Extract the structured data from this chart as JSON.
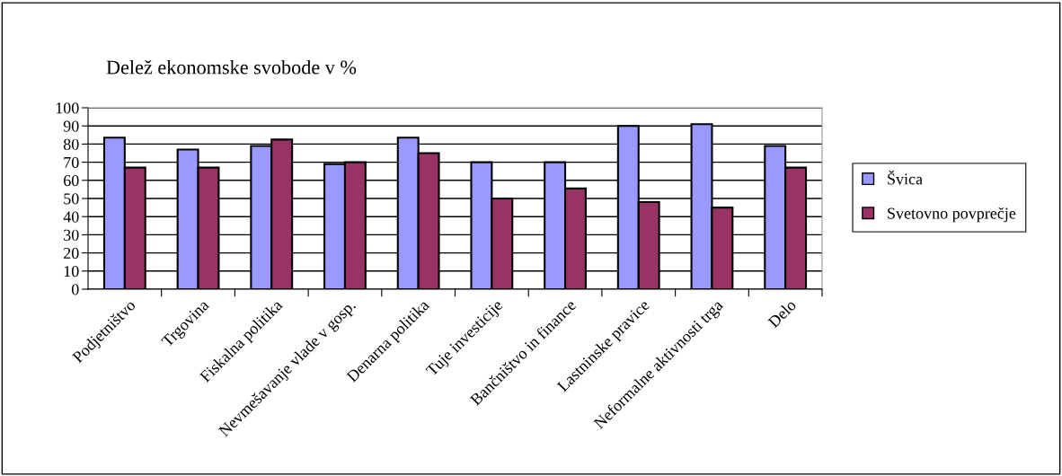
{
  "chart_data": {
    "type": "bar",
    "title": "Delež ekonomske svobode v %",
    "categories": [
      "Podjetništvo",
      "Trgovina",
      "Fiskalna politika",
      "Nevmešavanje vlade v gosp.",
      "Denarna politika",
      "Tuje investicije",
      "Bančništvo in finance",
      "Lastninske pravice",
      "Neformalne aktivnosti trga",
      "Delo"
    ],
    "series": [
      {
        "name": "Švica",
        "color": "#9999ff",
        "values": [
          83.5,
          77,
          79,
          69,
          83.5,
          70,
          70,
          90,
          91,
          79
        ]
      },
      {
        "name": "Svetovno povprečje",
        "color": "#993366",
        "values": [
          67,
          67,
          82.5,
          70,
          75,
          50,
          55.5,
          48,
          45,
          67
        ]
      }
    ],
    "ylim": [
      0,
      100
    ],
    "yticks": [
      0,
      10,
      20,
      30,
      40,
      50,
      60,
      70,
      80,
      90,
      100
    ],
    "grid": "y",
    "legend": "right"
  }
}
